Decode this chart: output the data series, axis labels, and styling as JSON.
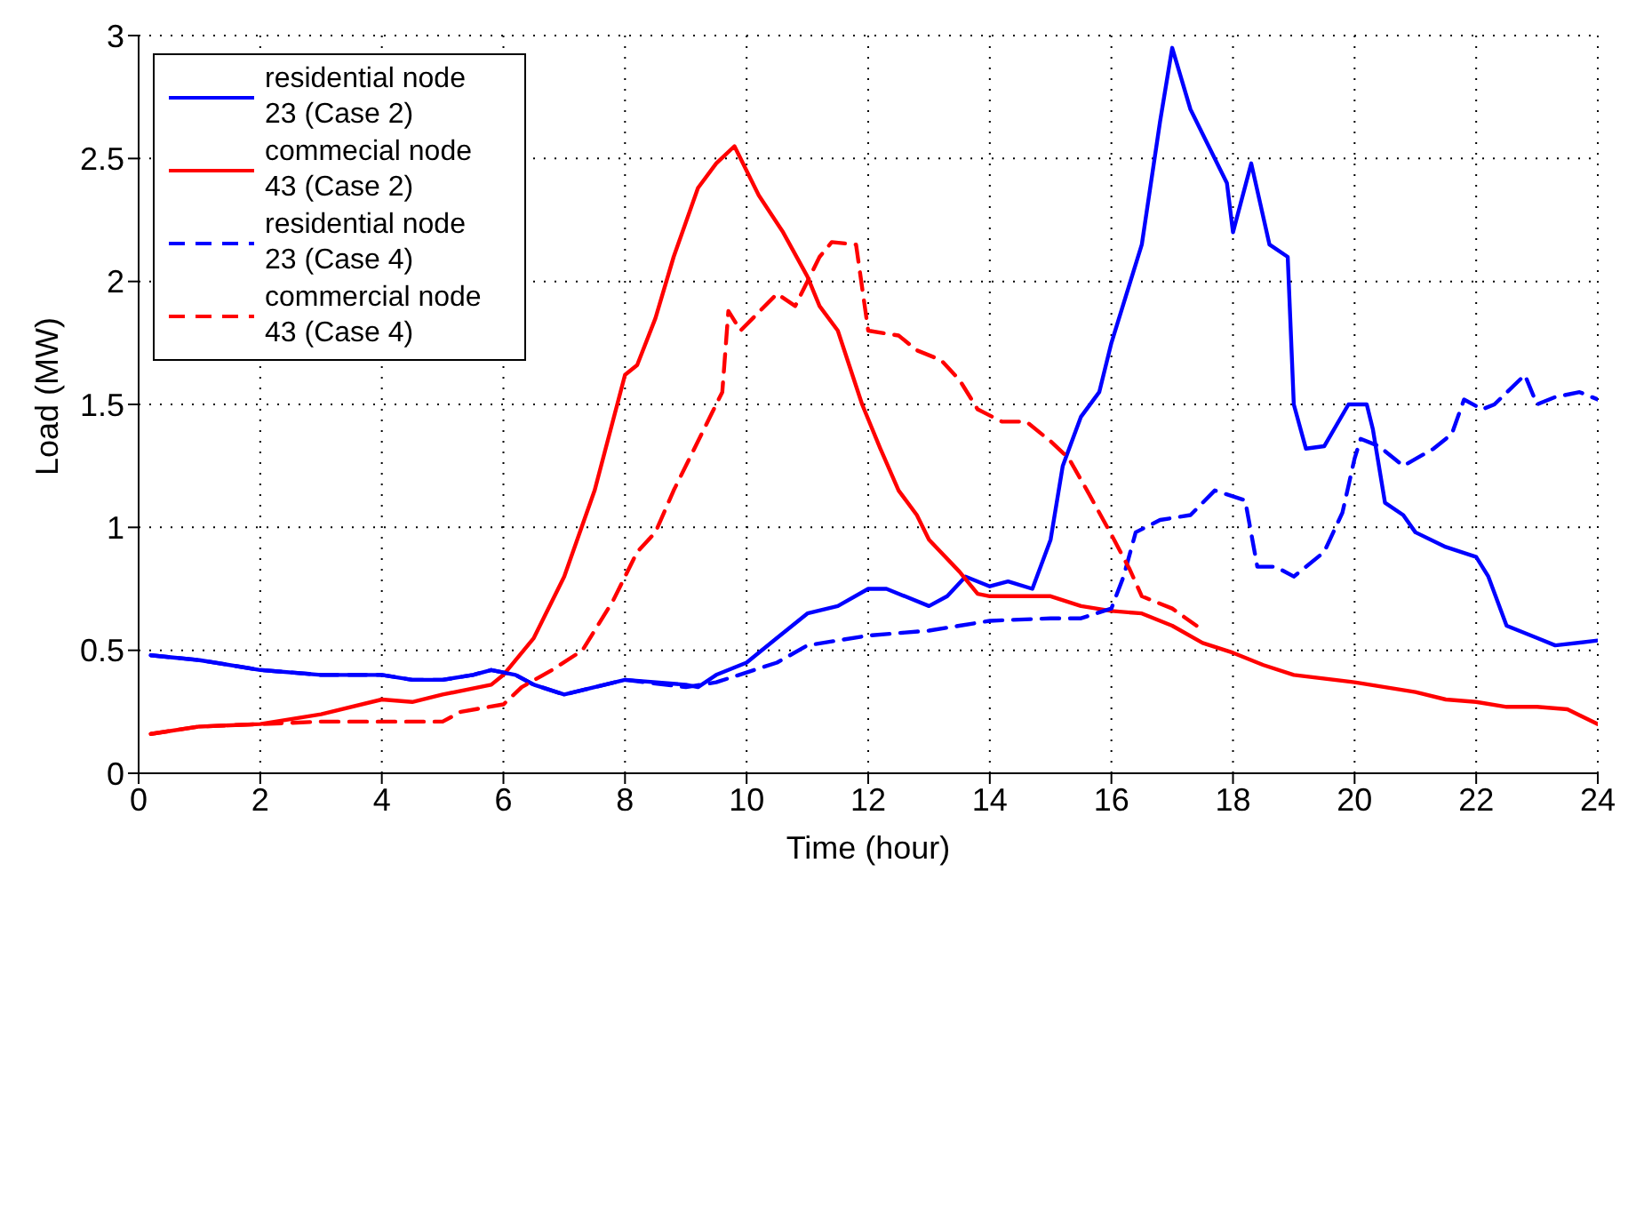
{
  "chart_data": {
    "type": "line",
    "xlabel": "Time (hour)",
    "ylabel": "Load (MW)",
    "xlim": [
      0,
      24
    ],
    "ylim": [
      0,
      3
    ],
    "xticks": [
      0,
      2,
      4,
      6,
      8,
      10,
      12,
      14,
      16,
      18,
      20,
      22,
      24
    ],
    "yticks": [
      0,
      0.5,
      1,
      1.5,
      2,
      2.5,
      3
    ],
    "grid": true,
    "legend": "top left",
    "marker": "none",
    "series": [
      {
        "name": "residential node 23 (Case 2)",
        "color": "#0000ff",
        "line_style": "solid",
        "x": [
          0.2,
          1,
          2,
          3,
          4,
          4.5,
          5,
          5.5,
          5.8,
          6.2,
          6.5,
          7,
          7.5,
          8,
          9,
          9.2,
          9.5,
          10,
          10.5,
          11,
          11.5,
          12,
          12.3,
          13,
          13.3,
          13.6,
          14,
          14.3,
          14.7,
          15,
          15.2,
          15.5,
          15.8,
          16,
          16.5,
          16.8,
          17,
          17.3,
          17.6,
          17.9,
          18,
          18.3,
          18.6,
          18.9,
          19,
          19.2,
          19.5,
          19.9,
          20.2,
          20.3,
          20.5,
          20.8,
          21,
          21.5,
          22,
          22.2,
          22.5,
          23,
          23.3,
          24
        ],
        "values": [
          0.48,
          0.46,
          0.42,
          0.4,
          0.4,
          0.38,
          0.38,
          0.4,
          0.42,
          0.4,
          0.36,
          0.32,
          0.35,
          0.38,
          0.36,
          0.35,
          0.4,
          0.45,
          0.55,
          0.65,
          0.68,
          0.75,
          0.75,
          0.68,
          0.72,
          0.8,
          0.76,
          0.78,
          0.75,
          0.95,
          1.25,
          1.45,
          1.55,
          1.75,
          2.15,
          2.65,
          2.95,
          2.7,
          2.55,
          2.4,
          2.2,
          2.48,
          2.15,
          2.1,
          1.5,
          1.32,
          1.33,
          1.5,
          1.5,
          1.4,
          1.1,
          1.05,
          0.98,
          0.92,
          0.88,
          0.8,
          0.6,
          0.55,
          0.52,
          0.54
        ]
      },
      {
        "name": "commecial node 43 (Case 2)",
        "color": "#ff0000",
        "line_style": "solid",
        "x": [
          0.2,
          1,
          2,
          3,
          4,
          4.5,
          5,
          5.8,
          6,
          6.5,
          7,
          7.5,
          8,
          8.2,
          8.5,
          8.8,
          9.2,
          9.5,
          9.8,
          10.2,
          10.6,
          11,
          11.2,
          11.5,
          11.9,
          12.2,
          12.5,
          12.8,
          13,
          13.5,
          13.8,
          14,
          15,
          15.5,
          16,
          16.5,
          17,
          17.5,
          18,
          18.5,
          19,
          20,
          20.5,
          21,
          21.5,
          22,
          22.5,
          23,
          23.5,
          24
        ],
        "values": [
          0.16,
          0.19,
          0.2,
          0.24,
          0.3,
          0.29,
          0.32,
          0.36,
          0.4,
          0.55,
          0.8,
          1.15,
          1.62,
          1.66,
          1.85,
          2.1,
          2.38,
          2.48,
          2.55,
          2.35,
          2.2,
          2.02,
          1.9,
          1.8,
          1.5,
          1.32,
          1.15,
          1.05,
          0.95,
          0.82,
          0.73,
          0.72,
          0.72,
          0.68,
          0.66,
          0.65,
          0.6,
          0.53,
          0.49,
          0.44,
          0.4,
          0.37,
          0.35,
          0.33,
          0.3,
          0.29,
          0.27,
          0.27,
          0.26,
          0.2
        ]
      },
      {
        "name": "residential node 23 (Case 4)",
        "color": "#0000ff",
        "line_style": "dashed",
        "x": [
          0.2,
          1,
          2,
          3,
          4,
          4.5,
          5,
          5.5,
          5.8,
          6.2,
          6.5,
          7,
          7.5,
          8,
          9,
          9.5,
          10,
          10.5,
          11,
          11.5,
          12,
          13,
          13.5,
          14,
          15,
          15.5,
          16,
          16.2,
          16.4,
          16.8,
          17.3,
          17.7,
          18.2,
          18.4,
          18.7,
          19,
          19.5,
          19.8,
          20,
          20.1,
          20.4,
          20.8,
          21.3,
          21.6,
          21.8,
          22.1,
          22.3,
          22.8,
          23,
          23.3,
          23.7,
          24
        ],
        "values": [
          0.48,
          0.46,
          0.42,
          0.4,
          0.4,
          0.38,
          0.38,
          0.4,
          0.42,
          0.4,
          0.36,
          0.32,
          0.35,
          0.38,
          0.35,
          0.37,
          0.41,
          0.45,
          0.52,
          0.54,
          0.56,
          0.58,
          0.6,
          0.62,
          0.63,
          0.63,
          0.67,
          0.8,
          0.98,
          1.03,
          1.05,
          1.15,
          1.11,
          0.84,
          0.84,
          0.8,
          0.9,
          1.06,
          1.28,
          1.36,
          1.33,
          1.25,
          1.32,
          1.38,
          1.52,
          1.48,
          1.5,
          1.62,
          1.5,
          1.53,
          1.55,
          1.52
        ]
      },
      {
        "name": "commercial node 43 (Case 4)",
        "color": "#ff0000",
        "line_style": "dashed",
        "x": [
          0.2,
          1,
          2,
          3,
          4,
          5,
          5.3,
          6,
          6.3,
          6.8,
          7.3,
          7.8,
          8.2,
          8.5,
          8.8,
          9.2,
          9.4,
          9.6,
          9.7,
          9.9,
          10.5,
          10.8,
          11.2,
          11.4,
          11.8,
          12,
          12.5,
          12.8,
          13.2,
          13.5,
          13.8,
          14.2,
          14.6,
          15,
          15.3,
          15.6,
          16,
          16.3,
          16.5,
          17,
          17.4
        ],
        "values": [
          0.16,
          0.19,
          0.2,
          0.21,
          0.21,
          0.21,
          0.25,
          0.28,
          0.35,
          0.42,
          0.5,
          0.7,
          0.9,
          0.98,
          1.15,
          1.35,
          1.45,
          1.55,
          1.88,
          1.8,
          1.95,
          1.9,
          2.1,
          2.16,
          2.15,
          1.8,
          1.78,
          1.72,
          1.68,
          1.6,
          1.48,
          1.43,
          1.43,
          1.35,
          1.28,
          1.15,
          0.97,
          0.83,
          0.72,
          0.67,
          0.6
        ]
      }
    ]
  }
}
